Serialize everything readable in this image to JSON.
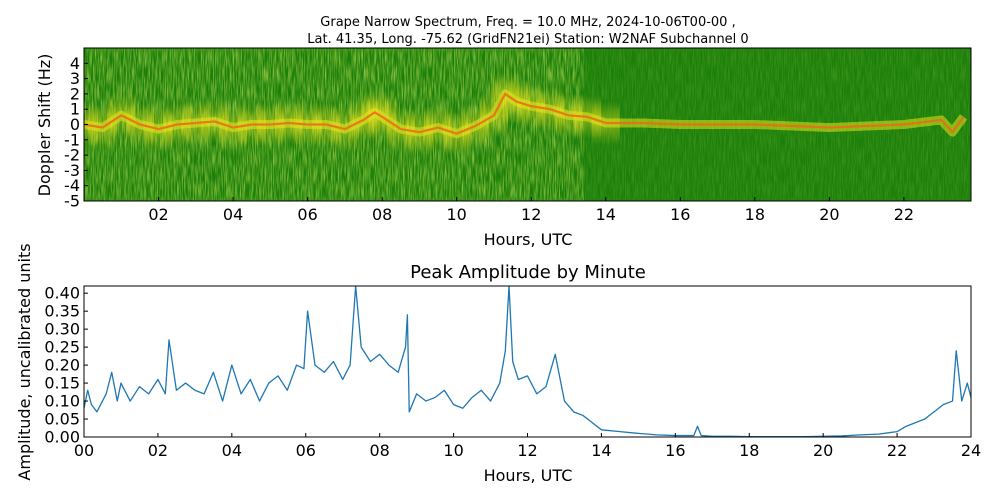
{
  "chart_data": [
    {
      "type": "heatmap",
      "title": "Grape Narrow Spectrum, Freq. = 10.0 MHz, 2024-10-06T00-00 ,",
      "subtitle": "Lat.  41.35, Long. -75.62 (GridFN21ei) Station: W2NAF Subchannel 0",
      "xlabel": "Hours, UTC",
      "ylabel": "Doppler Shift (Hz)",
      "xlim": [
        0,
        23.8
      ],
      "ylim": [
        -5,
        5
      ],
      "x_ticks": [
        "02",
        "04",
        "06",
        "08",
        "10",
        "12",
        "14",
        "16",
        "18",
        "20",
        "22"
      ],
      "x_tick_values": [
        2,
        4,
        6,
        8,
        10,
        12,
        14,
        16,
        18,
        20,
        22
      ],
      "y_ticks": [
        "4",
        "3",
        "2",
        "1",
        "0",
        "-1",
        "-2",
        "-3",
        "-4",
        "-5"
      ],
      "y_tick_values": [
        4,
        3,
        2,
        1,
        0,
        -1,
        -2,
        -3,
        -4,
        -5
      ],
      "colors": {
        "background": "#1b7f0a",
        "mid": "#8ec81a",
        "high": "#f0e41e",
        "peak": "#e8471a"
      },
      "doppler_trace": {
        "x": [
          0,
          0.5,
          1,
          1.5,
          2,
          2.5,
          3,
          3.5,
          4,
          4.5,
          5,
          5.5,
          6,
          6.5,
          7,
          7.5,
          7.8,
          8,
          8.5,
          9,
          9.5,
          10,
          10.5,
          11,
          11.3,
          11.6,
          12,
          12.5,
          13,
          13.5,
          14,
          15,
          16,
          17,
          18,
          19,
          20,
          21,
          22,
          23,
          23.3,
          23.6
        ],
        "y": [
          0,
          -0.2,
          0.6,
          0,
          -0.3,
          0,
          0.1,
          0.2,
          -0.2,
          0,
          0,
          0.1,
          0,
          0,
          -0.3,
          0.3,
          0.8,
          0.5,
          -0.3,
          -0.5,
          -0.2,
          -0.6,
          -0.1,
          0.6,
          2,
          1.5,
          1.2,
          1,
          0.6,
          0.5,
          0.1,
          0.1,
          0,
          0,
          0,
          -0.1,
          -0.2,
          -0.1,
          0,
          0.3,
          -0.5,
          0.5
        ]
      }
    },
    {
      "type": "line",
      "title": "Peak Amplitude by Minute",
      "xlabel": "Hours, UTC",
      "ylabel": "Amplitude, uncalibrated units",
      "xlim": [
        0,
        24
      ],
      "ylim": [
        0,
        0.42
      ],
      "x_ticks": [
        "00",
        "02",
        "04",
        "06",
        "08",
        "10",
        "12",
        "14",
        "16",
        "18",
        "20",
        "22",
        "24"
      ],
      "x_tick_values": [
        0,
        2,
        4,
        6,
        8,
        10,
        12,
        14,
        16,
        18,
        20,
        22,
        24
      ],
      "y_ticks": [
        "0.40",
        "0.35",
        "0.30",
        "0.25",
        "0.20",
        "0.15",
        "0.10",
        "0.05",
        "0.00"
      ],
      "y_tick_values": [
        0.4,
        0.35,
        0.3,
        0.25,
        0.2,
        0.15,
        0.1,
        0.05,
        0.0
      ],
      "line_color": "#1f77b4",
      "x": [
        0,
        0.1,
        0.2,
        0.35,
        0.5,
        0.6,
        0.75,
        0.9,
        1.0,
        1.25,
        1.5,
        1.75,
        2.0,
        2.2,
        2.3,
        2.5,
        2.75,
        3.0,
        3.25,
        3.5,
        3.75,
        4.0,
        4.25,
        4.5,
        4.75,
        5.0,
        5.25,
        5.5,
        5.75,
        5.95,
        6.05,
        6.25,
        6.5,
        6.75,
        7.0,
        7.2,
        7.35,
        7.5,
        7.75,
        8.0,
        8.25,
        8.5,
        8.7,
        8.75,
        8.8,
        9.0,
        9.25,
        9.5,
        9.75,
        10.0,
        10.25,
        10.5,
        10.75,
        11.0,
        11.25,
        11.4,
        11.5,
        11.6,
        11.75,
        12.0,
        12.25,
        12.5,
        12.75,
        13.0,
        13.25,
        13.5,
        13.75,
        14.0,
        14.5,
        15.0,
        15.5,
        16.0,
        16.5,
        16.6,
        16.7,
        17.0,
        17.5,
        18.0,
        18.5,
        19.0,
        19.5,
        20.0,
        20.5,
        21.0,
        21.5,
        22.0,
        22.25,
        22.5,
        22.75,
        23.0,
        23.25,
        23.5,
        23.6,
        23.75,
        23.9,
        24.0
      ],
      "y": [
        0.08,
        0.13,
        0.09,
        0.07,
        0.1,
        0.12,
        0.18,
        0.1,
        0.15,
        0.1,
        0.14,
        0.12,
        0.16,
        0.12,
        0.27,
        0.13,
        0.15,
        0.13,
        0.12,
        0.18,
        0.1,
        0.2,
        0.12,
        0.16,
        0.1,
        0.15,
        0.17,
        0.13,
        0.2,
        0.19,
        0.35,
        0.2,
        0.18,
        0.21,
        0.16,
        0.2,
        0.42,
        0.25,
        0.21,
        0.23,
        0.2,
        0.18,
        0.25,
        0.34,
        0.07,
        0.12,
        0.1,
        0.11,
        0.13,
        0.09,
        0.08,
        0.11,
        0.13,
        0.1,
        0.15,
        0.24,
        0.42,
        0.21,
        0.16,
        0.17,
        0.12,
        0.14,
        0.23,
        0.1,
        0.07,
        0.06,
        0.04,
        0.02,
        0.015,
        0.01,
        0.006,
        0.004,
        0.004,
        0.03,
        0.004,
        0.002,
        0.002,
        0.001,
        0.001,
        0.001,
        0.001,
        0.002,
        0.003,
        0.006,
        0.008,
        0.015,
        0.03,
        0.04,
        0.05,
        0.07,
        0.09,
        0.1,
        0.24,
        0.1,
        0.15,
        0.11
      ]
    }
  ]
}
